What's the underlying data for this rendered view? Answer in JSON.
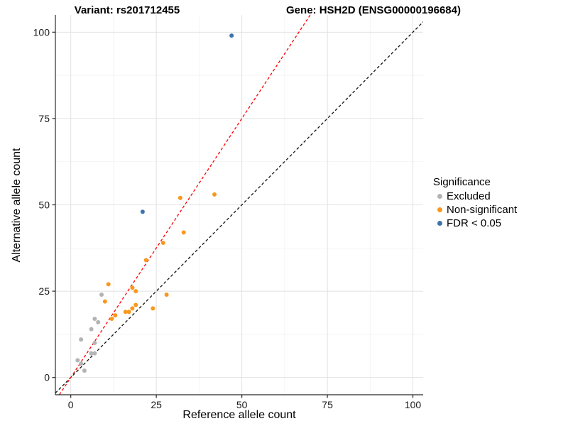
{
  "titles": {
    "left": "Variant: rs201712455",
    "right": "Gene: HSH2D (ENSG00000196684)"
  },
  "chart_data": {
    "type": "scatter",
    "title_left": "Variant: rs201712455",
    "title_right": "Gene: HSH2D (ENSG00000196684)",
    "xlabel": "Reference allele count",
    "ylabel": "Alternative allele count",
    "xlim": [
      -4.5,
      103
    ],
    "ylim": [
      -5,
      105
    ],
    "x_ticks": [
      0,
      25,
      50,
      75,
      100
    ],
    "y_ticks": [
      0,
      25,
      50,
      75,
      100
    ],
    "x_minor_ticks": [
      12.5,
      37.5,
      62.5,
      87.5
    ],
    "y_minor_ticks": [
      12.5,
      37.5,
      62.5,
      87.5
    ],
    "grid": true,
    "legend": {
      "title": "Significance",
      "position": "right"
    },
    "colors": {
      "major_grid": "#E2E2E2",
      "minor_grid": "#F0F0F0",
      "axis_line": "#2b2b2b",
      "tick_text": "#1a1a1a"
    },
    "series": [
      {
        "name": "Excluded",
        "color": "#B3B3B3",
        "points": [
          [
            2,
            5
          ],
          [
            3,
            4
          ],
          [
            4,
            2
          ],
          [
            6,
            7
          ],
          [
            7,
            7
          ],
          [
            3,
            11
          ],
          [
            7,
            10
          ],
          [
            6,
            14
          ],
          [
            8,
            16
          ],
          [
            7,
            17
          ],
          [
            9,
            24
          ]
        ]
      },
      {
        "name": "Non-significant",
        "color": "#F8981D",
        "points": [
          [
            10,
            22
          ],
          [
            11,
            27
          ],
          [
            12,
            17
          ],
          [
            13,
            18
          ],
          [
            16,
            19
          ],
          [
            17,
            19
          ],
          [
            18,
            20
          ],
          [
            18,
            26
          ],
          [
            19,
            21
          ],
          [
            19,
            25
          ],
          [
            22,
            34
          ],
          [
            24,
            20
          ],
          [
            27,
            39
          ],
          [
            28,
            24
          ],
          [
            32,
            52
          ],
          [
            33,
            42
          ],
          [
            42,
            53
          ]
        ]
      },
      {
        "name": "FDR < 0.05",
        "color": "#3E73AC",
        "points": [
          [
            21,
            48
          ],
          [
            47,
            99
          ]
        ]
      }
    ],
    "reference_lines": [
      {
        "name": "identity-line",
        "slope": 1,
        "intercept": 0,
        "color": "#111111",
        "style": "dashed"
      },
      {
        "name": "expected-ratio-line",
        "slope": 1.5,
        "intercept": 0,
        "color": "#FF0000",
        "style": "dashed"
      }
    ]
  }
}
